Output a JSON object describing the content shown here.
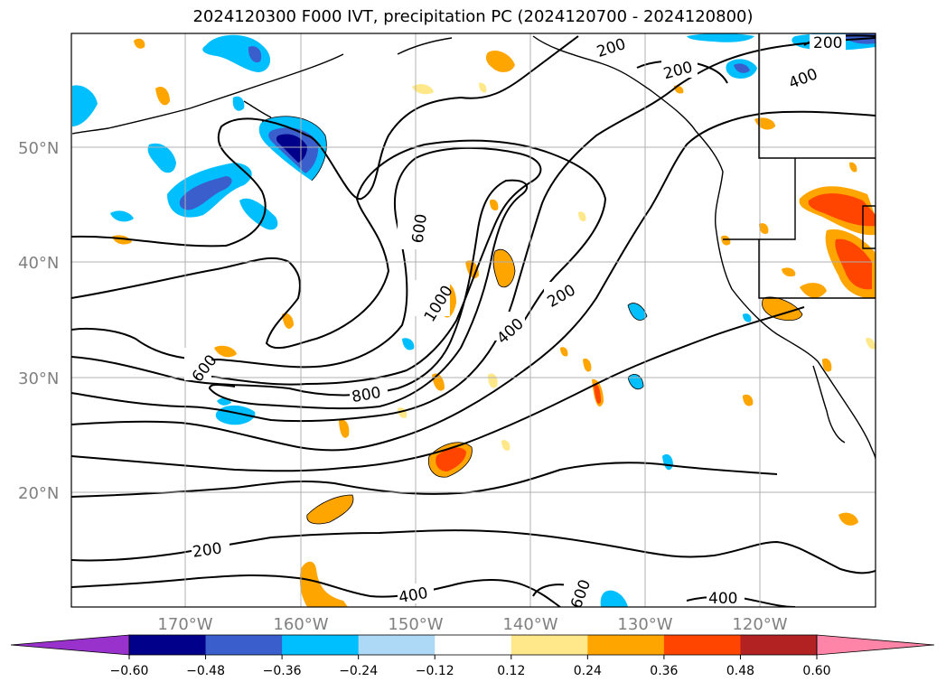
{
  "title": "2024120300 F000 IVT, precipitation PC (2024120700 - 2024120800)",
  "axes": {
    "lat_labels": [
      "50°N",
      "40°N",
      "30°N",
      "20°N"
    ],
    "lon_labels": [
      "170°W",
      "160°W",
      "150°W",
      "140°W",
      "130°W",
      "120°W"
    ]
  },
  "contour_labels": [
    "200",
    "200",
    "400",
    "200",
    "600",
    "1000",
    "400",
    "200",
    "600",
    "800",
    "200",
    "400",
    "600",
    "400"
  ],
  "colorbar": {
    "ticks": [
      "−0.60",
      "−0.48",
      "−0.36",
      "−0.24",
      "−0.12",
      "0.12",
      "0.24",
      "0.36",
      "0.48",
      "0.60"
    ],
    "colors": [
      "#9932cc",
      "#00008b",
      "#3a5fcd",
      "#00bfff",
      "#add8f6",
      "#ffffff",
      "#ffe88a",
      "#ffa500",
      "#ff4500",
      "#b22222",
      "#ff85a8"
    ]
  }
}
